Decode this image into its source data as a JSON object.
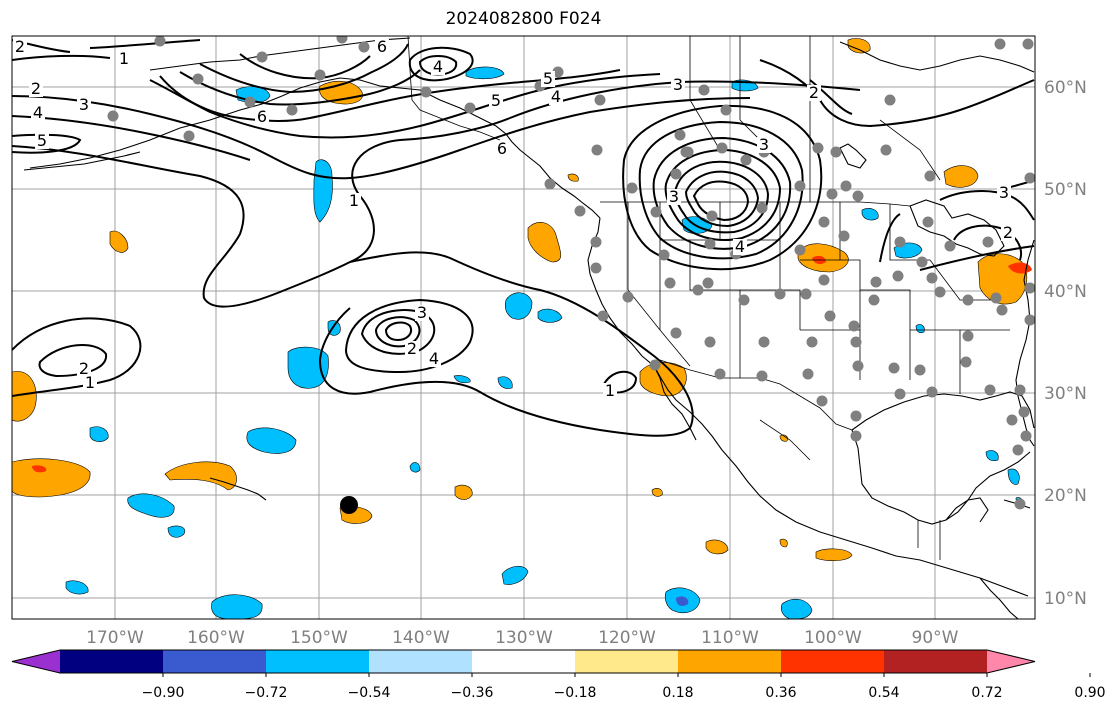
{
  "title": "2024082800 F024",
  "lon_labels": [
    "170°W",
    "160°W",
    "150°W",
    "140°W",
    "130°W",
    "120°W",
    "110°W",
    "100°W",
    "90°W"
  ],
  "lat_labels": [
    "60°N",
    "50°N",
    "40°N",
    "30°N",
    "20°N",
    "10°N"
  ],
  "colorbar": {
    "ticks": [
      "−0.90",
      "−0.72",
      "−0.54",
      "−0.36",
      "−0.18",
      "0.18",
      "0.36",
      "0.54",
      "0.72",
      "0.90"
    ],
    "colors": [
      "#9b30d0",
      "#000080",
      "#3a5bd0",
      "#00bfff",
      "#b0e2ff",
      "#ffffff",
      "#ffe98a",
      "#ffa500",
      "#ff3300",
      "#b22222",
      "#ff88aa"
    ]
  },
  "contour_labels": [
    "2",
    "1",
    "2",
    "4",
    "3",
    "5",
    "6",
    "5",
    "4",
    "6",
    "4",
    "5",
    "6",
    "3",
    "2",
    "3",
    "1",
    "4",
    "3",
    "2",
    "4",
    "2",
    "1",
    "3",
    "2",
    "3",
    "1"
  ],
  "map_colors": {
    "coast": "#000000",
    "contour": "#000000",
    "station_dot": "#808080",
    "marker": "#000000",
    "grid": "#a0a0a0"
  }
}
